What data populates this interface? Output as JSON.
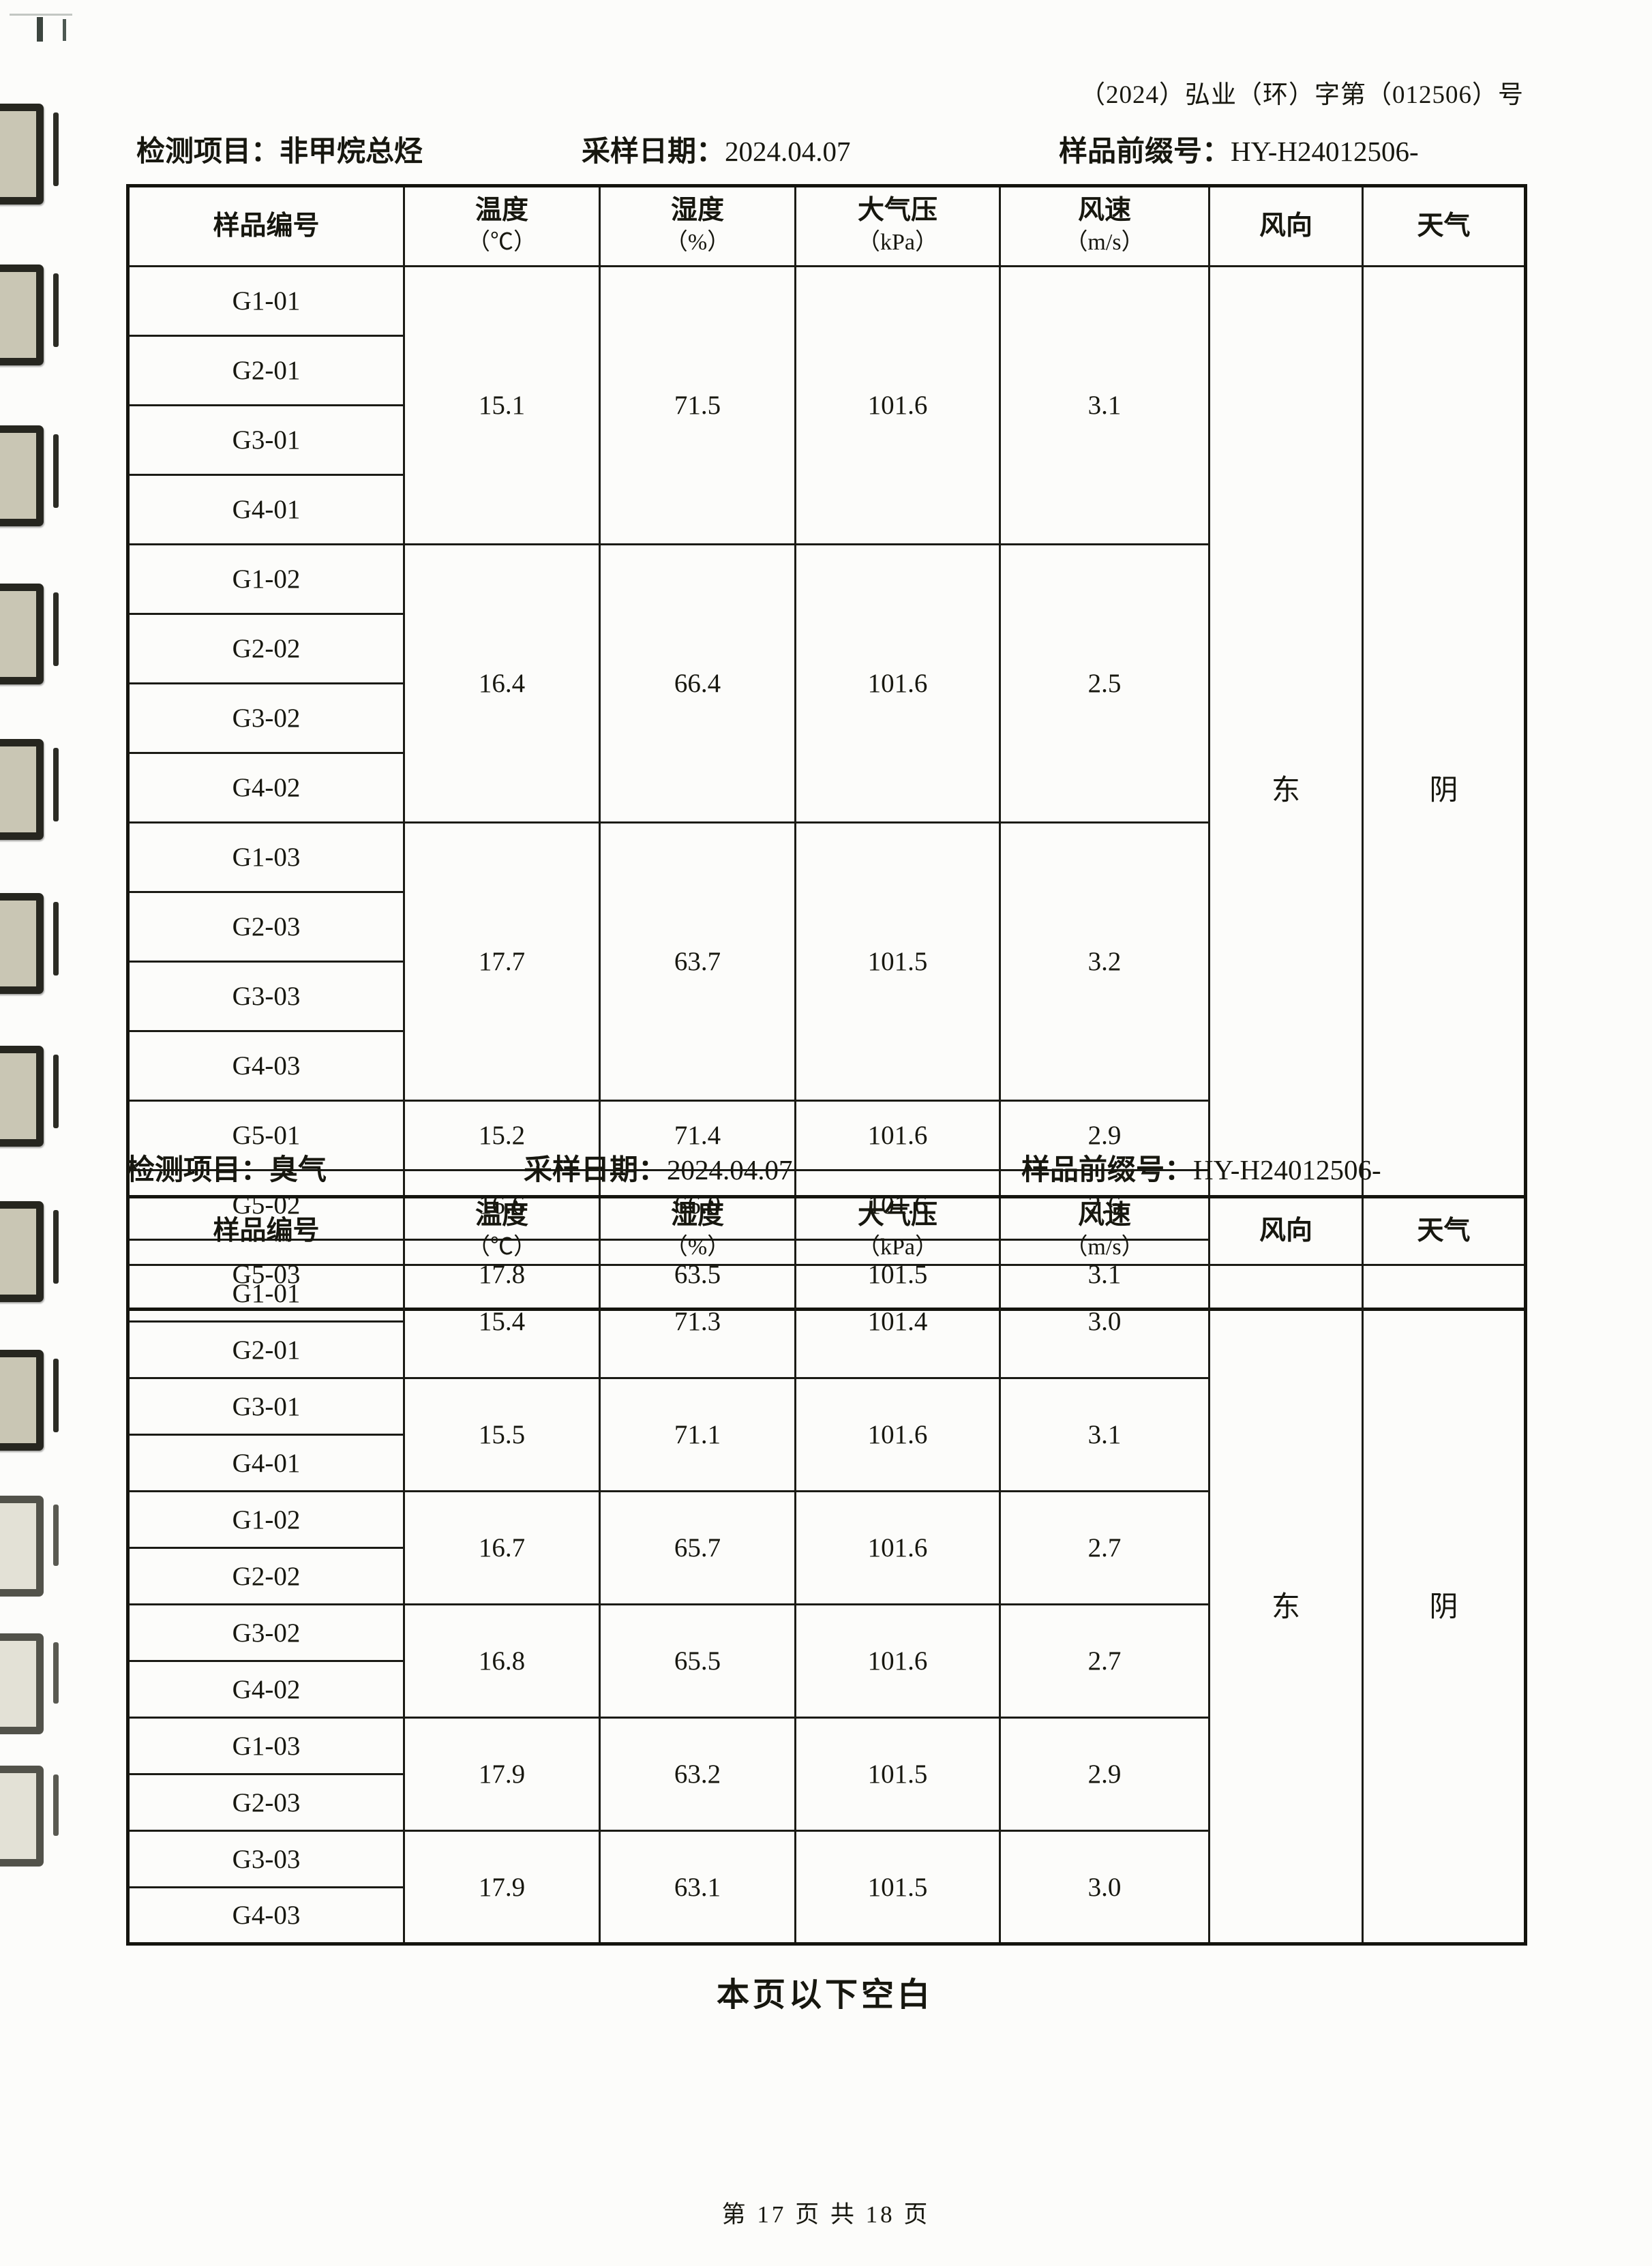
{
  "page": {
    "doc_number": "（2024）弘业（环）字第（012506）号",
    "blank_note": "本页以下空白",
    "footer": "第 17 页 共 18 页"
  },
  "labels": {
    "test_item": "检测项目：",
    "sampling_date": "采样日期：",
    "sample_prefix": "样品前缀号："
  },
  "tables": [
    {
      "test_item": "非甲烷总烃",
      "sampling_date": "2024.04.07",
      "sample_prefix": "HY-H24012506-",
      "columns": [
        {
          "label": "样品编号",
          "unit": ""
        },
        {
          "label": "温度",
          "unit": "（℃）"
        },
        {
          "label": "湿度",
          "unit": "（%）"
        },
        {
          "label": "大气压",
          "unit": "（kPa）"
        },
        {
          "label": "风速",
          "unit": "（m/s）"
        },
        {
          "label": "风向",
          "unit": ""
        },
        {
          "label": "天气",
          "unit": ""
        }
      ],
      "wind_direction": "东",
      "weather": "阴",
      "groups": [
        {
          "samples": [
            "G1-01",
            "G2-01",
            "G3-01",
            "G4-01"
          ],
          "temperature": "15.1",
          "humidity": "71.5",
          "pressure": "101.6",
          "wind_speed": "3.1"
        },
        {
          "samples": [
            "G1-02",
            "G2-02",
            "G3-02",
            "G4-02"
          ],
          "temperature": "16.4",
          "humidity": "66.4",
          "pressure": "101.6",
          "wind_speed": "2.5"
        },
        {
          "samples": [
            "G1-03",
            "G2-03",
            "G3-03",
            "G4-03"
          ],
          "temperature": "17.7",
          "humidity": "63.7",
          "pressure": "101.5",
          "wind_speed": "3.2"
        },
        {
          "samples": [
            "G5-01"
          ],
          "temperature": "15.2",
          "humidity": "71.4",
          "pressure": "101.6",
          "wind_speed": "2.9"
        },
        {
          "samples": [
            "G5-02"
          ],
          "temperature": "16.6",
          "humidity": "66.0",
          "pressure": "101.6",
          "wind_speed": "2.6"
        },
        {
          "samples": [
            "G5-03"
          ],
          "temperature": "17.8",
          "humidity": "63.5",
          "pressure": "101.5",
          "wind_speed": "3.1"
        }
      ]
    },
    {
      "test_item": "臭气",
      "sampling_date": "2024.04.07",
      "sample_prefix": "HY-H24012506-",
      "columns": [
        {
          "label": "样品编号",
          "unit": ""
        },
        {
          "label": "温度",
          "unit": "（℃）"
        },
        {
          "label": "湿度",
          "unit": "（%）"
        },
        {
          "label": "大气压",
          "unit": "（kPa）"
        },
        {
          "label": "风速",
          "unit": "（m/s）"
        },
        {
          "label": "风向",
          "unit": ""
        },
        {
          "label": "天气",
          "unit": ""
        }
      ],
      "wind_direction": "东",
      "weather": "阴",
      "groups": [
        {
          "samples": [
            "G1-01",
            "G2-01"
          ],
          "temperature": "15.4",
          "humidity": "71.3",
          "pressure": "101.4",
          "wind_speed": "3.0"
        },
        {
          "samples": [
            "G3-01",
            "G4-01"
          ],
          "temperature": "15.5",
          "humidity": "71.1",
          "pressure": "101.6",
          "wind_speed": "3.1"
        },
        {
          "samples": [
            "G1-02",
            "G2-02"
          ],
          "temperature": "16.7",
          "humidity": "65.7",
          "pressure": "101.6",
          "wind_speed": "2.7"
        },
        {
          "samples": [
            "G3-02",
            "G4-02"
          ],
          "temperature": "16.8",
          "humidity": "65.5",
          "pressure": "101.6",
          "wind_speed": "2.7"
        },
        {
          "samples": [
            "G1-03",
            "G2-03"
          ],
          "temperature": "17.9",
          "humidity": "63.2",
          "pressure": "101.5",
          "wind_speed": "2.9"
        },
        {
          "samples": [
            "G3-03",
            "G4-03"
          ],
          "temperature": "17.9",
          "humidity": "63.1",
          "pressure": "101.5",
          "wind_speed": "3.0"
        }
      ]
    }
  ]
}
